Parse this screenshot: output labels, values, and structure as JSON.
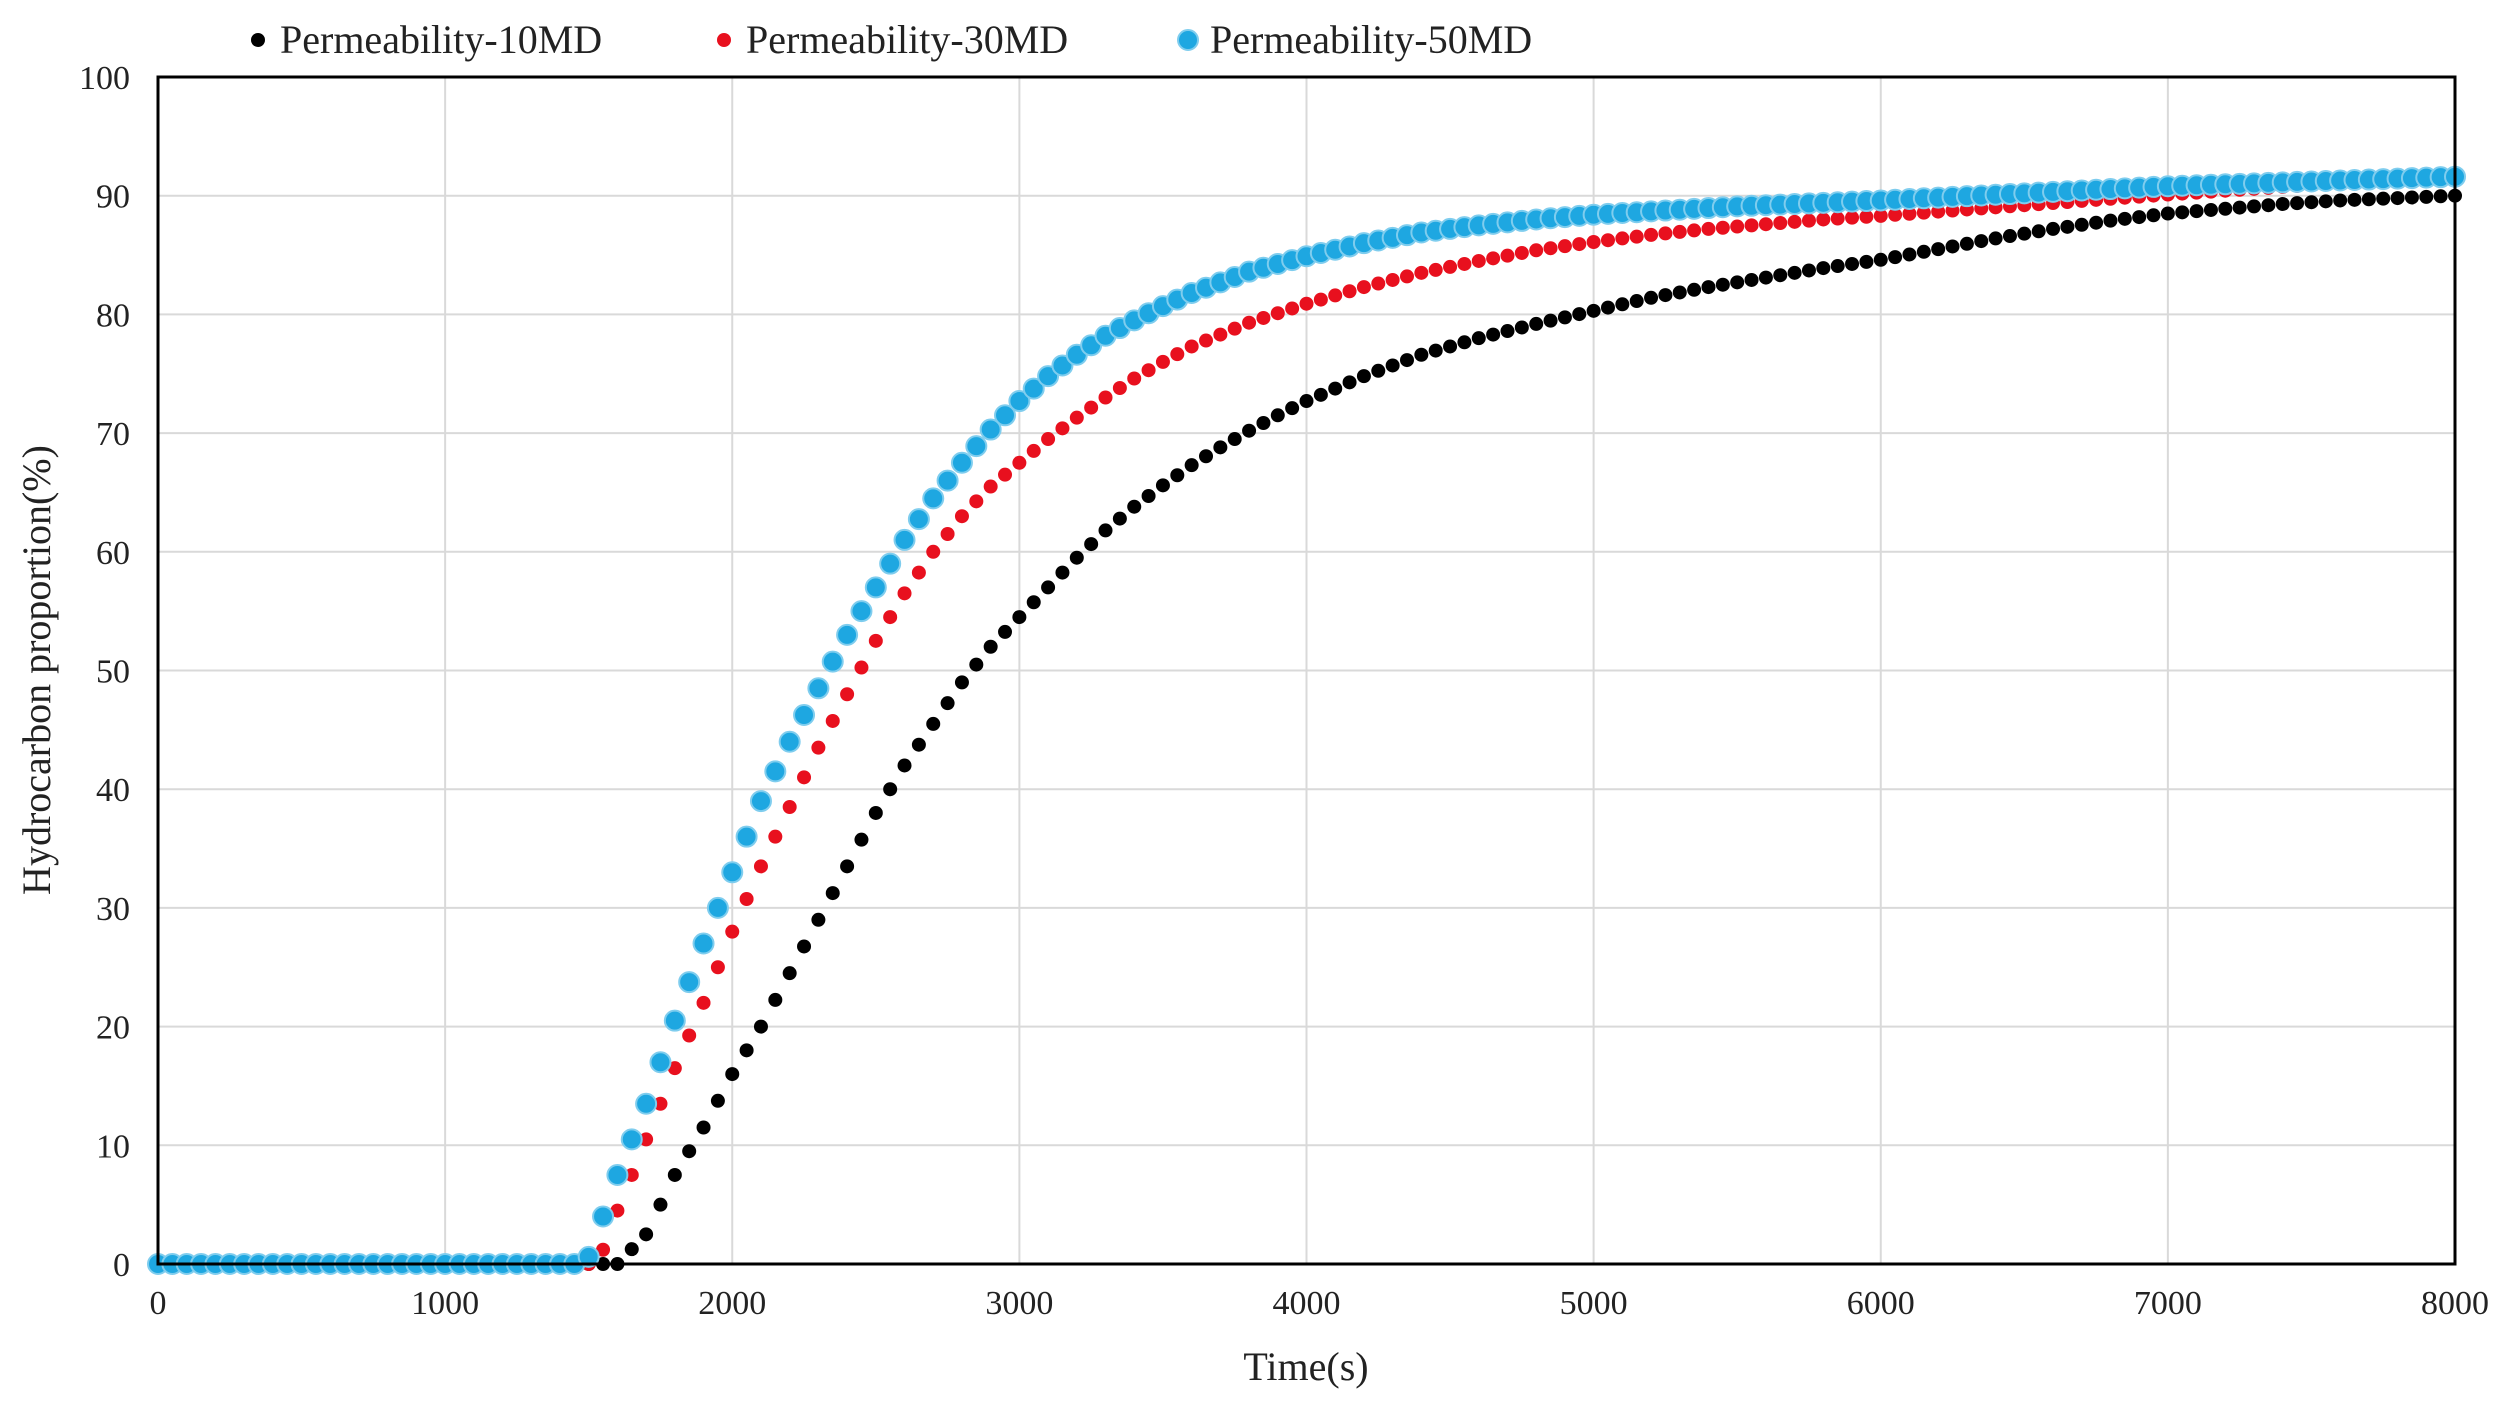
{
  "chart_data": {
    "type": "scatter",
    "title": "",
    "xlabel": "Time(s)",
    "ylabel": "Hydrocarbon proportion(%)",
    "xlim": [
      0,
      8000
    ],
    "ylim": [
      0,
      100
    ],
    "x_ticks": [
      "0",
      "1000",
      "2000",
      "3000",
      "4000",
      "5000",
      "6000",
      "7000",
      "8000"
    ],
    "y_ticks": [
      "0",
      "10",
      "20",
      "30",
      "40",
      "50",
      "60",
      "70",
      "80",
      "90",
      "100"
    ],
    "grid": true,
    "legend_position": "top",
    "x_step": 50,
    "series": [
      {
        "name": "Permeability-10MD",
        "color": "#000000",
        "onset": 1600,
        "values": [
          [
            0,
            0
          ],
          [
            1600,
            0
          ],
          [
            1700,
            2.5
          ],
          [
            1800,
            7.5
          ],
          [
            1900,
            11.5
          ],
          [
            2000,
            16
          ],
          [
            2100,
            20
          ],
          [
            2200,
            24.5
          ],
          [
            2300,
            29
          ],
          [
            2400,
            33.5
          ],
          [
            2500,
            38
          ],
          [
            2600,
            42
          ],
          [
            2700,
            45.5
          ],
          [
            2800,
            49
          ],
          [
            2900,
            52
          ],
          [
            3000,
            54.5
          ],
          [
            3100,
            57
          ],
          [
            3200,
            59.5
          ],
          [
            3300,
            61.8
          ],
          [
            3400,
            63.8
          ],
          [
            3500,
            65.6
          ],
          [
            3600,
            67.3
          ],
          [
            3700,
            68.8
          ],
          [
            3800,
            70.2
          ],
          [
            3900,
            71.5
          ],
          [
            4000,
            72.7
          ],
          [
            4200,
            74.8
          ],
          [
            4400,
            76.6
          ],
          [
            4600,
            78
          ],
          [
            4800,
            79.2
          ],
          [
            5000,
            80.3
          ],
          [
            5200,
            81.4
          ],
          [
            5400,
            82.3
          ],
          [
            5600,
            83.1
          ],
          [
            5800,
            83.9
          ],
          [
            6000,
            84.6
          ],
          [
            6200,
            85.5
          ],
          [
            6400,
            86.4
          ],
          [
            6600,
            87.2
          ],
          [
            6800,
            87.9
          ],
          [
            7000,
            88.5
          ],
          [
            7200,
            88.9
          ],
          [
            7400,
            89.3
          ],
          [
            7600,
            89.6
          ],
          [
            7800,
            89.8
          ],
          [
            8000,
            90
          ]
        ]
      },
      {
        "name": "Permeability-30MD",
        "color": "#e8101e",
        "onset": 1500,
        "values": [
          [
            0,
            0
          ],
          [
            1500,
            0
          ],
          [
            1550,
            1.2
          ],
          [
            1600,
            4.5
          ],
          [
            1700,
            10.5
          ],
          [
            1800,
            16.5
          ],
          [
            1900,
            22
          ],
          [
            2000,
            28
          ],
          [
            2100,
            33.5
          ],
          [
            2200,
            38.5
          ],
          [
            2300,
            43.5
          ],
          [
            2400,
            48
          ],
          [
            2500,
            52.5
          ],
          [
            2600,
            56.5
          ],
          [
            2700,
            60
          ],
          [
            2800,
            63
          ],
          [
            2900,
            65.5
          ],
          [
            3000,
            67.5
          ],
          [
            3100,
            69.5
          ],
          [
            3200,
            71.3
          ],
          [
            3300,
            73
          ],
          [
            3400,
            74.6
          ],
          [
            3500,
            76
          ],
          [
            3600,
            77.3
          ],
          [
            3800,
            79.3
          ],
          [
            4000,
            80.9
          ],
          [
            4200,
            82.3
          ],
          [
            4400,
            83.5
          ],
          [
            4600,
            84.5
          ],
          [
            4800,
            85.4
          ],
          [
            5000,
            86.1
          ],
          [
            5200,
            86.7
          ],
          [
            5400,
            87.2
          ],
          [
            5600,
            87.6
          ],
          [
            5800,
            88
          ],
          [
            6000,
            88.3
          ],
          [
            6500,
            89.2
          ],
          [
            7000,
            90.1
          ],
          [
            7500,
            90.9
          ],
          [
            8000,
            91.5
          ]
        ]
      },
      {
        "name": "Permeability-50MD",
        "color": "#1ea7e1",
        "onset": 1450,
        "values": [
          [
            0,
            0
          ],
          [
            1450,
            0
          ],
          [
            1500,
            0.6
          ],
          [
            1550,
            4
          ],
          [
            1600,
            7.5
          ],
          [
            1700,
            13.5
          ],
          [
            1800,
            20.5
          ],
          [
            1900,
            27
          ],
          [
            2000,
            33
          ],
          [
            2100,
            39
          ],
          [
            2200,
            44
          ],
          [
            2300,
            48.5
          ],
          [
            2400,
            53
          ],
          [
            2500,
            57
          ],
          [
            2600,
            61
          ],
          [
            2700,
            64.5
          ],
          [
            2800,
            67.5
          ],
          [
            2900,
            70.3
          ],
          [
            3000,
            72.7
          ],
          [
            3100,
            74.8
          ],
          [
            3200,
            76.6
          ],
          [
            3300,
            78.2
          ],
          [
            3400,
            79.5
          ],
          [
            3500,
            80.7
          ],
          [
            3600,
            81.8
          ],
          [
            3800,
            83.6
          ],
          [
            4000,
            84.9
          ],
          [
            4200,
            86
          ],
          [
            4400,
            86.9
          ],
          [
            4600,
            87.5
          ],
          [
            4800,
            88
          ],
          [
            5000,
            88.4
          ],
          [
            5500,
            89.1
          ],
          [
            6000,
            89.6
          ],
          [
            6500,
            90.2
          ],
          [
            7000,
            90.8
          ],
          [
            7500,
            91.2
          ],
          [
            8000,
            91.6
          ]
        ]
      }
    ]
  }
}
